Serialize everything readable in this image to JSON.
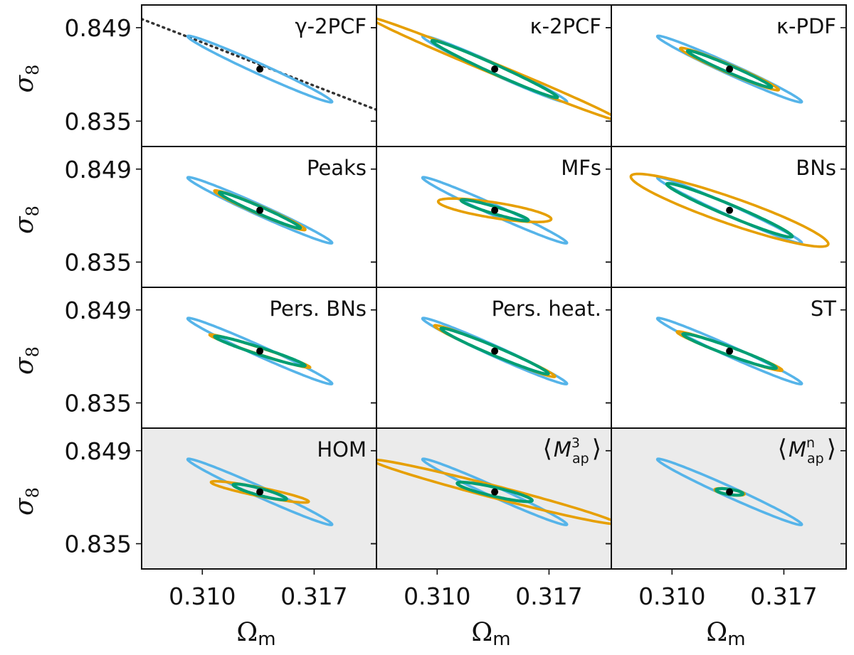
{
  "chart_data": {
    "type": "contour-grid",
    "rows": 4,
    "cols": 3,
    "xlabel": "Ωm",
    "ylabel": "σ8",
    "xlim": [
      0.3062,
      0.3209
    ],
    "ylim": [
      0.8312,
      0.8524
    ],
    "xticks": [
      0.31,
      0.317
    ],
    "xtick_labels": [
      "0.310",
      "0.317"
    ],
    "yticks": [
      0.849,
      0.835
    ],
    "ytick_labels": [
      "0.849",
      "0.835"
    ],
    "fiducial": {
      "x": 0.3136,
      "y": 0.8428
    },
    "colors": {
      "reference": "#56B4E9",
      "statistic": "#E69F00",
      "combined": "#009E73",
      "fiducial": "#000000",
      "dotted": "#333333",
      "shaded_bg": "#EBEBEB"
    },
    "legend_roles": [
      "reference",
      "statistic",
      "combined"
    ],
    "panels": [
      {
        "label": "γ-2PCF",
        "shaded": false,
        "dotted_line": {
          "x": [
            0.3062,
            0.3209
          ],
          "y": [
            0.8503,
            0.8367
          ]
        },
        "ellipses": [
          {
            "role": "reference",
            "cx": 0.3136,
            "cy": 0.8428,
            "a": 0.0067,
            "b": 0.00058,
            "angle": -0.8337
          }
        ]
      },
      {
        "label": "κ-2PCF",
        "shaded": false,
        "ellipses": [
          {
            "role": "reference",
            "cx": 0.3136,
            "cy": 0.8428,
            "a": 0.0067,
            "b": 0.00058,
            "angle": -0.8337
          },
          {
            "role": "statistic",
            "cx": 0.3136,
            "cy": 0.8428,
            "a": 0.011,
            "b": 0.0006,
            "angle": -0.78
          },
          {
            "role": "combined",
            "cx": 0.3136,
            "cy": 0.8428,
            "a": 0.0058,
            "b": 0.0005,
            "angle": -0.83
          }
        ]
      },
      {
        "label": "κ-PDF",
        "shaded": false,
        "ellipses": [
          {
            "role": "reference",
            "cx": 0.3136,
            "cy": 0.8428,
            "a": 0.0067,
            "b": 0.00058,
            "angle": -0.8337
          },
          {
            "role": "statistic",
            "cx": 0.3136,
            "cy": 0.8428,
            "a": 0.0044,
            "b": 0.00048,
            "angle": -0.8
          },
          {
            "role": "combined",
            "cx": 0.3136,
            "cy": 0.8428,
            "a": 0.0038,
            "b": 0.0004,
            "angle": -0.81
          }
        ]
      },
      {
        "label": "Peaks",
        "shaded": false,
        "ellipses": [
          {
            "role": "reference",
            "cx": 0.3136,
            "cy": 0.8428,
            "a": 0.0067,
            "b": 0.00058,
            "angle": -0.8337
          },
          {
            "role": "statistic",
            "cx": 0.3136,
            "cy": 0.8428,
            "a": 0.0041,
            "b": 0.00046,
            "angle": -0.81
          },
          {
            "role": "combined",
            "cx": 0.3136,
            "cy": 0.8428,
            "a": 0.0037,
            "b": 0.0004,
            "angle": -0.82
          }
        ]
      },
      {
        "label": "MFs",
        "shaded": false,
        "ellipses": [
          {
            "role": "reference",
            "cx": 0.3136,
            "cy": 0.8428,
            "a": 0.0067,
            "b": 0.00058,
            "angle": -0.8337
          },
          {
            "role": "statistic",
            "cx": 0.3136,
            "cy": 0.8428,
            "a": 0.0038,
            "b": 0.0011,
            "angle": -0.39
          },
          {
            "role": "combined",
            "cx": 0.3136,
            "cy": 0.8428,
            "a": 0.0026,
            "b": 0.00045,
            "angle": -0.64
          }
        ]
      },
      {
        "label": "BNs",
        "shaded": false,
        "ellipses": [
          {
            "role": "reference",
            "cx": 0.3136,
            "cy": 0.8428,
            "a": 0.0067,
            "b": 0.00058,
            "angle": -0.8337
          },
          {
            "role": "statistic",
            "cx": 0.3136,
            "cy": 0.8428,
            "a": 0.0081,
            "b": 0.0016,
            "angle": -0.72
          },
          {
            "role": "combined",
            "cx": 0.3136,
            "cy": 0.8428,
            "a": 0.0056,
            "b": 0.00065,
            "angle": -0.8
          }
        ]
      },
      {
        "label": "Pers. BNs",
        "shaded": false,
        "ellipses": [
          {
            "role": "reference",
            "cx": 0.3136,
            "cy": 0.8428,
            "a": 0.0067,
            "b": 0.00058,
            "angle": -0.8337
          },
          {
            "role": "statistic",
            "cx": 0.3136,
            "cy": 0.8428,
            "a": 0.004,
            "b": 0.0004,
            "angle": -0.67
          },
          {
            "role": "combined",
            "cx": 0.3136,
            "cy": 0.8428,
            "a": 0.0036,
            "b": 0.00045,
            "angle": -0.67
          }
        ]
      },
      {
        "label": "Pers. heat.",
        "shaded": false,
        "ellipses": [
          {
            "role": "reference",
            "cx": 0.3136,
            "cy": 0.8428,
            "a": 0.0067,
            "b": 0.00058,
            "angle": -0.8337
          },
          {
            "role": "statistic",
            "cx": 0.3136,
            "cy": 0.8428,
            "a": 0.0054,
            "b": 0.0005,
            "angle": -0.8
          },
          {
            "role": "combined",
            "cx": 0.3136,
            "cy": 0.8428,
            "a": 0.0048,
            "b": 0.0005,
            "angle": -0.8
          }
        ]
      },
      {
        "label": "ST",
        "shaded": false,
        "ellipses": [
          {
            "role": "reference",
            "cx": 0.3136,
            "cy": 0.8428,
            "a": 0.0067,
            "b": 0.00058,
            "angle": -0.8337
          },
          {
            "role": "statistic",
            "cx": 0.3136,
            "cy": 0.8428,
            "a": 0.0044,
            "b": 0.0005,
            "angle": -0.73
          },
          {
            "role": "combined",
            "cx": 0.3136,
            "cy": 0.8428,
            "a": 0.0039,
            "b": 0.0005,
            "angle": -0.73
          }
        ]
      },
      {
        "label": "HOM",
        "shaded": true,
        "ellipses": [
          {
            "role": "reference",
            "cx": 0.3136,
            "cy": 0.8428,
            "a": 0.0067,
            "b": 0.00058,
            "angle": -0.8337
          },
          {
            "role": "statistic",
            "cx": 0.3136,
            "cy": 0.8428,
            "a": 0.0034,
            "b": 0.0006,
            "angle": -0.46
          },
          {
            "role": "combined",
            "cx": 0.3136,
            "cy": 0.8428,
            "a": 0.002,
            "b": 0.00045,
            "angle": -0.6
          }
        ]
      },
      {
        "label": "⟨M³ap⟩",
        "label_main": "M",
        "label_sup": "3",
        "label_sub": "ap",
        "shaded": true,
        "ellipses": [
          {
            "role": "reference",
            "cx": 0.3136,
            "cy": 0.8428,
            "a": 0.0067,
            "b": 0.00058,
            "angle": -0.8337
          },
          {
            "role": "statistic",
            "cx": 0.3136,
            "cy": 0.8428,
            "a": 0.009,
            "b": 0.0008,
            "angle": -0.56
          },
          {
            "role": "combined",
            "cx": 0.3136,
            "cy": 0.8428,
            "a": 0.0027,
            "b": 0.0006,
            "angle": -0.53
          }
        ]
      },
      {
        "label": "⟨Mⁿap⟩",
        "label_main": "M",
        "label_sup": "n",
        "label_sub": "ap",
        "shaded": true,
        "ellipses": [
          {
            "role": "reference",
            "cx": 0.3136,
            "cy": 0.8428,
            "a": 0.0067,
            "b": 0.00058,
            "angle": -0.8337
          },
          {
            "role": "statistic",
            "cx": 0.3136,
            "cy": 0.8428,
            "a": 0.001,
            "b": 0.0004,
            "angle": -0.4
          },
          {
            "role": "combined",
            "cx": 0.3136,
            "cy": 0.8428,
            "a": 0.0009,
            "b": 0.00038,
            "angle": -0.4
          }
        ]
      }
    ]
  }
}
